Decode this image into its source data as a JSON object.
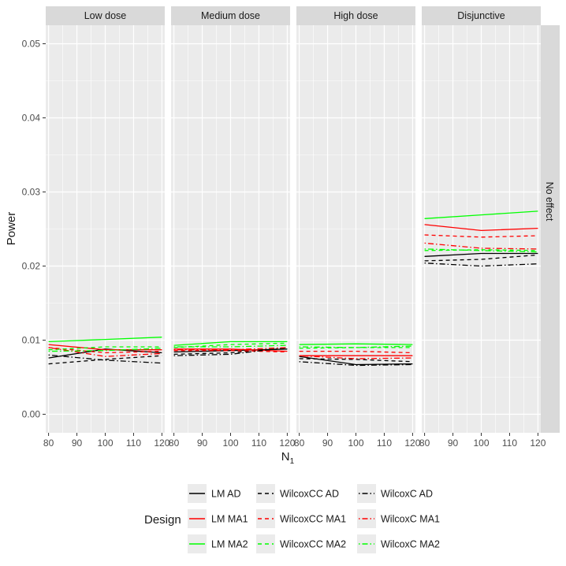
{
  "chart_data": {
    "type": "line",
    "xlabel": "N",
    "xlabel_sub": "1",
    "ylabel": "Power",
    "x": [
      80,
      100,
      120
    ],
    "x_ticks": [
      "80",
      "90",
      "100",
      "110",
      "120"
    ],
    "x_tick_values": [
      80,
      90,
      100,
      110,
      120
    ],
    "y_ticks": [
      "0.00",
      "0.01",
      "0.02",
      "0.03",
      "0.04",
      "0.05"
    ],
    "y_tick_values": [
      0,
      0.01,
      0.02,
      0.03,
      0.04,
      0.05
    ],
    "xlim": [
      79,
      121
    ],
    "ylim": [
      -0.0025,
      0.0525
    ],
    "row_strip": "No effect",
    "panels": [
      {
        "strip": "Low dose",
        "series": [
          {
            "name": "LM AD",
            "values": [
              0.0076,
              0.0088,
              0.0083
            ]
          },
          {
            "name": "LM MA1",
            "values": [
              0.0094,
              0.0087,
              0.0087
            ]
          },
          {
            "name": "LM MA2",
            "values": [
              0.0098,
              0.0101,
              0.0104
            ]
          },
          {
            "name": "WilcoxCC AD",
            "values": [
              0.0068,
              0.0074,
              0.0079
            ]
          },
          {
            "name": "WilcoxCC MA1",
            "values": [
              0.009,
              0.0083,
              0.0085
            ]
          },
          {
            "name": "WilcoxCC MA2",
            "values": [
              0.0087,
              0.0091,
              0.0091
            ]
          },
          {
            "name": "WilcoxC AD",
            "values": [
              0.008,
              0.0073,
              0.0069
            ]
          },
          {
            "name": "WilcoxC MA1",
            "values": [
              0.009,
              0.0078,
              0.0082
            ]
          },
          {
            "name": "WilcoxC MA2",
            "values": [
              0.0085,
              0.0086,
              0.0089
            ]
          }
        ]
      },
      {
        "strip": "Medium dose",
        "series": [
          {
            "name": "LM AD",
            "values": [
              0.0084,
              0.0086,
              0.0088
            ]
          },
          {
            "name": "LM MA1",
            "values": [
              0.0088,
              0.0088,
              0.0085
            ]
          },
          {
            "name": "LM MA2",
            "values": [
              0.0093,
              0.0098,
              0.0098
            ]
          },
          {
            "name": "WilcoxCC AD",
            "values": [
              0.0081,
              0.0083,
              0.0089
            ]
          },
          {
            "name": "WilcoxCC MA1",
            "values": [
              0.0086,
              0.0086,
              0.0084
            ]
          },
          {
            "name": "WilcoxCC MA2",
            "values": [
              0.009,
              0.0094,
              0.0096
            ]
          },
          {
            "name": "WilcoxC AD",
            "values": [
              0.0079,
              0.0081,
              0.009
            ]
          },
          {
            "name": "WilcoxC MA1",
            "values": [
              0.0087,
              0.0087,
              0.009
            ]
          },
          {
            "name": "WilcoxC MA2",
            "values": [
              0.0091,
              0.0091,
              0.0093
            ]
          }
        ]
      },
      {
        "strip": "High dose",
        "series": [
          {
            "name": "LM AD",
            "values": [
              0.0078,
              0.0067,
              0.0068
            ]
          },
          {
            "name": "LM MA1",
            "values": [
              0.0079,
              0.0079,
              0.0079
            ]
          },
          {
            "name": "LM MA2",
            "values": [
              0.0094,
              0.0095,
              0.0094
            ]
          },
          {
            "name": "WilcoxCC AD",
            "values": [
              0.0075,
              0.0074,
              0.0071
            ]
          },
          {
            "name": "WilcoxCC MA1",
            "values": [
              0.0085,
              0.0085,
              0.0083
            ]
          },
          {
            "name": "WilcoxCC MA2",
            "values": [
              0.0089,
              0.009,
              0.009
            ]
          },
          {
            "name": "WilcoxC AD",
            "values": [
              0.0071,
              0.0066,
              0.0067
            ]
          },
          {
            "name": "WilcoxC MA1",
            "values": [
              0.0079,
              0.0075,
              0.0076
            ]
          },
          {
            "name": "WilcoxC MA2",
            "values": [
              0.0091,
              0.009,
              0.0092
            ]
          }
        ]
      },
      {
        "strip": "Disjunctive",
        "series": [
          {
            "name": "LM AD",
            "values": [
              0.0213,
              0.0217,
              0.0217
            ]
          },
          {
            "name": "LM MA1",
            "values": [
              0.0256,
              0.0248,
              0.0251
            ]
          },
          {
            "name": "LM MA2",
            "values": [
              0.0264,
              0.0269,
              0.0274
            ]
          },
          {
            "name": "WilcoxCC AD",
            "values": [
              0.0207,
              0.0209,
              0.0215
            ]
          },
          {
            "name": "WilcoxCC MA1",
            "values": [
              0.0242,
              0.0239,
              0.0241
            ]
          },
          {
            "name": "WilcoxCC MA2",
            "values": [
              0.0221,
              0.0222,
              0.0221
            ]
          },
          {
            "name": "WilcoxC AD",
            "values": [
              0.0204,
              0.02,
              0.0203
            ]
          },
          {
            "name": "WilcoxC MA1",
            "values": [
              0.0231,
              0.0224,
              0.0223
            ]
          },
          {
            "name": "WilcoxC MA2",
            "values": [
              0.0223,
              0.0221,
              0.0219
            ]
          }
        ]
      }
    ],
    "legend": {
      "title": "Design",
      "position": "bottom",
      "entries": [
        {
          "label": "LM AD",
          "color": "#000000",
          "dash": "solid"
        },
        {
          "label": "LM MA1",
          "color": "#ff0000",
          "dash": "solid"
        },
        {
          "label": "LM MA2",
          "color": "#00ff00",
          "dash": "solid"
        },
        {
          "label": "WilcoxCC AD",
          "color": "#000000",
          "dash": "dashed"
        },
        {
          "label": "WilcoxCC MA1",
          "color": "#ff0000",
          "dash": "dashed"
        },
        {
          "label": "WilcoxCC MA2",
          "color": "#00ff00",
          "dash": "dashed"
        },
        {
          "label": "WilcoxC AD",
          "color": "#000000",
          "dash": "dotdash"
        },
        {
          "label": "WilcoxC MA1",
          "color": "#ff0000",
          "dash": "dotdash"
        },
        {
          "label": "WilcoxC MA2",
          "color": "#00ff00",
          "dash": "dotdash"
        }
      ]
    },
    "colors": {
      "panel_bg": "#ebebeb",
      "strip_bg": "#d9d9d9",
      "grid": "#ffffff",
      "text": "#1a1a1a",
      "tick_text": "#4d4d4d"
    },
    "grid": true
  }
}
